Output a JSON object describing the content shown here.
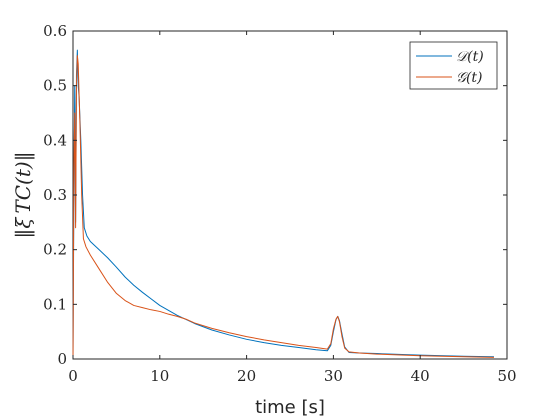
{
  "chart_data": {
    "type": "line",
    "title": "",
    "xlabel": "time [s]",
    "ylabel": "‖ξ TC(t)‖",
    "xlim": [
      0,
      50
    ],
    "ylim": [
      0,
      0.6
    ],
    "xticks": [
      0,
      10,
      20,
      30,
      40,
      50
    ],
    "yticks": [
      0,
      0.1,
      0.2,
      0.3,
      0.4,
      0.5,
      0.6
    ],
    "xtick_labels": [
      "0",
      "10",
      "20",
      "30",
      "40",
      "50"
    ],
    "ytick_labels": [
      "0",
      "0.1",
      "0.2",
      "0.3",
      "0.4",
      "0.5",
      "0.6"
    ],
    "grid": false,
    "legend_position": "top-right",
    "series": [
      {
        "name": "𝒟(t)",
        "color": "#0072BD",
        "points": [
          [
            0,
            0
          ],
          [
            0.1,
            0.3
          ],
          [
            0.2,
            0.5
          ],
          [
            0.3,
            0.25
          ],
          [
            0.4,
            0.52
          ],
          [
            0.5,
            0.565
          ],
          [
            0.6,
            0.5
          ],
          [
            0.7,
            0.48
          ],
          [
            0.9,
            0.4
          ],
          [
            1.1,
            0.3
          ],
          [
            1.3,
            0.24
          ],
          [
            1.6,
            0.225
          ],
          [
            2,
            0.215
          ],
          [
            3,
            0.2
          ],
          [
            4,
            0.185
          ],
          [
            5,
            0.168
          ],
          [
            6,
            0.15
          ],
          [
            7,
            0.135
          ],
          [
            8,
            0.122
          ],
          [
            9,
            0.11
          ],
          [
            10,
            0.098
          ],
          [
            12,
            0.08
          ],
          [
            14,
            0.065
          ],
          [
            16,
            0.053
          ],
          [
            18,
            0.044
          ],
          [
            20,
            0.036
          ],
          [
            22,
            0.03
          ],
          [
            24,
            0.025
          ],
          [
            26,
            0.021
          ],
          [
            28,
            0.017
          ],
          [
            29.3,
            0.015
          ],
          [
            29.7,
            0.025
          ],
          [
            30,
            0.05
          ],
          [
            30.3,
            0.072
          ],
          [
            30.5,
            0.078
          ],
          [
            30.7,
            0.07
          ],
          [
            31,
            0.045
          ],
          [
            31.3,
            0.022
          ],
          [
            31.8,
            0.012
          ],
          [
            33,
            0.011
          ],
          [
            35,
            0.01
          ],
          [
            40,
            0.007
          ],
          [
            45,
            0.005
          ],
          [
            48.5,
            0.004
          ]
        ]
      },
      {
        "name": "𝒢(t)",
        "color": "#D95319",
        "points": [
          [
            0,
            0
          ],
          [
            0.1,
            0.35
          ],
          [
            0.2,
            0.45
          ],
          [
            0.3,
            0.24
          ],
          [
            0.4,
            0.5
          ],
          [
            0.5,
            0.555
          ],
          [
            0.6,
            0.54
          ],
          [
            0.8,
            0.43
          ],
          [
            1,
            0.3
          ],
          [
            1.2,
            0.22
          ],
          [
            1.5,
            0.205
          ],
          [
            2,
            0.19
          ],
          [
            3,
            0.165
          ],
          [
            4,
            0.14
          ],
          [
            5,
            0.12
          ],
          [
            6,
            0.107
          ],
          [
            7,
            0.098
          ],
          [
            8,
            0.094
          ],
          [
            9,
            0.09
          ],
          [
            10,
            0.087
          ],
          [
            11,
            0.082
          ],
          [
            12,
            0.078
          ],
          [
            13,
            0.073
          ],
          [
            14,
            0.066
          ],
          [
            16,
            0.056
          ],
          [
            18,
            0.048
          ],
          [
            20,
            0.041
          ],
          [
            22,
            0.035
          ],
          [
            24,
            0.03
          ],
          [
            26,
            0.025
          ],
          [
            28,
            0.021
          ],
          [
            29.3,
            0.018
          ],
          [
            29.7,
            0.028
          ],
          [
            30,
            0.055
          ],
          [
            30.3,
            0.073
          ],
          [
            30.5,
            0.078
          ],
          [
            30.7,
            0.068
          ],
          [
            31,
            0.04
          ],
          [
            31.3,
            0.02
          ],
          [
            31.8,
            0.013
          ],
          [
            33,
            0.011
          ],
          [
            35,
            0.009
          ],
          [
            40,
            0.006
          ],
          [
            45,
            0.004
          ],
          [
            48.5,
            0.003
          ]
        ]
      }
    ]
  }
}
